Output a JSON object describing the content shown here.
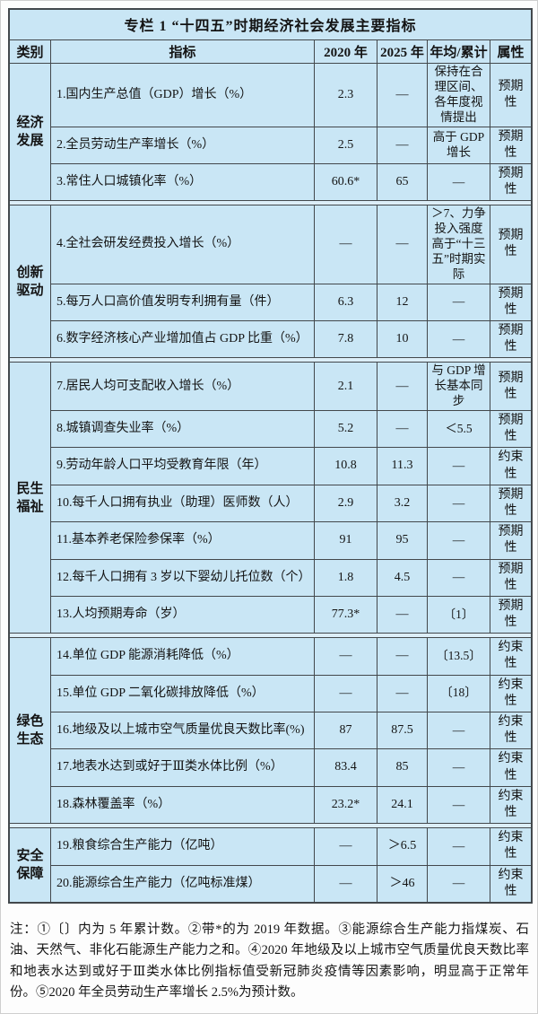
{
  "page": {
    "title": "专栏 1 “十四五”时期经济社会发展主要指标"
  },
  "table": {
    "columns": [
      "类别",
      "指标",
      "2020 年",
      "2025 年",
      "年均/累计",
      "属性"
    ],
    "sections": [
      {
        "category": "经济发展",
        "rows": [
          {
            "indicator": "1.国内生产总值（GDP）增长（%）",
            "y2020": "2.3",
            "y2025": "—",
            "annual": "保持在合理区间、各年度视情提出",
            "attribute": "预期性"
          },
          {
            "indicator": "2.全员劳动生产率增长（%）",
            "y2020": "2.5",
            "y2025": "—",
            "annual": "高于 GDP 增长",
            "attribute": "预期性"
          },
          {
            "indicator": "3.常住人口城镇化率（%）",
            "y2020": "60.6*",
            "y2025": "65",
            "annual": "—",
            "attribute": "预期性"
          }
        ]
      },
      {
        "category": "创新驱动",
        "rows": [
          {
            "indicator": "4.全社会研发经费投入增长（%）",
            "y2020": "—",
            "y2025": "—",
            "annual": "＞7、力争投入强度高于“十三五”时期实际",
            "attribute": "预期性"
          },
          {
            "indicator": "5.每万人口高价值发明专利拥有量（件）",
            "y2020": "6.3",
            "y2025": "12",
            "annual": "—",
            "attribute": "预期性"
          },
          {
            "indicator": "6.数字经济核心产业增加值占 GDP 比重（%）",
            "y2020": "7.8",
            "y2025": "10",
            "annual": "—",
            "attribute": "预期性"
          }
        ]
      },
      {
        "category": "民生福祉",
        "rows": [
          {
            "indicator": "7.居民人均可支配收入增长（%）",
            "y2020": "2.1",
            "y2025": "—",
            "annual": "与 GDP 增长基本同步",
            "attribute": "预期性"
          },
          {
            "indicator": "8.城镇调查失业率（%）",
            "y2020": "5.2",
            "y2025": "—",
            "annual": "＜5.5",
            "attribute": "预期性"
          },
          {
            "indicator": "9.劳动年龄人口平均受教育年限（年）",
            "y2020": "10.8",
            "y2025": "11.3",
            "annual": "—",
            "attribute": "约束性"
          },
          {
            "indicator": "10.每千人口拥有执业（助理）医师数（人）",
            "y2020": "2.9",
            "y2025": "3.2",
            "annual": "—",
            "attribute": "预期性"
          },
          {
            "indicator": "11.基本养老保险参保率（%）",
            "y2020": "91",
            "y2025": "95",
            "annual": "—",
            "attribute": "预期性"
          },
          {
            "indicator": "12.每千人口拥有 3 岁以下婴幼儿托位数（个）",
            "y2020": "1.8",
            "y2025": "4.5",
            "annual": "—",
            "attribute": "预期性"
          },
          {
            "indicator": "13.人均预期寿命（岁）",
            "y2020": "77.3*",
            "y2025": "—",
            "annual": "〔1〕",
            "attribute": "预期性"
          }
        ]
      },
      {
        "category": "绿色生态",
        "rows": [
          {
            "indicator": "14.单位 GDP 能源消耗降低（%）",
            "y2020": "—",
            "y2025": "—",
            "annual": "〔13.5〕",
            "attribute": "约束性"
          },
          {
            "indicator": "15.单位 GDP 二氧化碳排放降低（%）",
            "y2020": "—",
            "y2025": "—",
            "annual": "〔18〕",
            "attribute": "约束性"
          },
          {
            "indicator": "16.地级及以上城市空气质量优良天数比率(%)",
            "y2020": "87",
            "y2025": "87.5",
            "annual": "—",
            "attribute": "约束性"
          },
          {
            "indicator": "17.地表水达到或好于Ⅲ类水体比例（%）",
            "y2020": "83.4",
            "y2025": "85",
            "annual": "—",
            "attribute": "约束性"
          },
          {
            "indicator": "18.森林覆盖率（%）",
            "y2020": "23.2*",
            "y2025": "24.1",
            "annual": "—",
            "attribute": "约束性"
          }
        ]
      },
      {
        "category": "安全保障",
        "rows": [
          {
            "indicator": "19.粮食综合生产能力（亿吨）",
            "y2020": "—",
            "y2025": "＞6.5",
            "annual": "—",
            "attribute": "约束性"
          },
          {
            "indicator": "20.能源综合生产能力（亿吨标准煤）",
            "y2020": "—",
            "y2025": "＞46",
            "annual": "—",
            "attribute": "约束性"
          }
        ]
      }
    ]
  },
  "notes": "注：①〔〕内为 5 年累计数。②带*的为 2019 年数据。③能源综合生产能力指煤炭、石油、天然气、非化石能源生产能力之和。④2020 年地级及以上城市空气质量优良天数比率和地表水达到或好于Ⅲ类水体比例指标值受新冠肺炎疫情等因素影响，明显高于正常年份。⑤2020 年全员劳动生产率增长 2.5%为预计数。",
  "colors": {
    "cell_background": "#c9e6f5",
    "section_gap_background": "#dceef8",
    "border": "#43484c",
    "text": "#141414"
  }
}
